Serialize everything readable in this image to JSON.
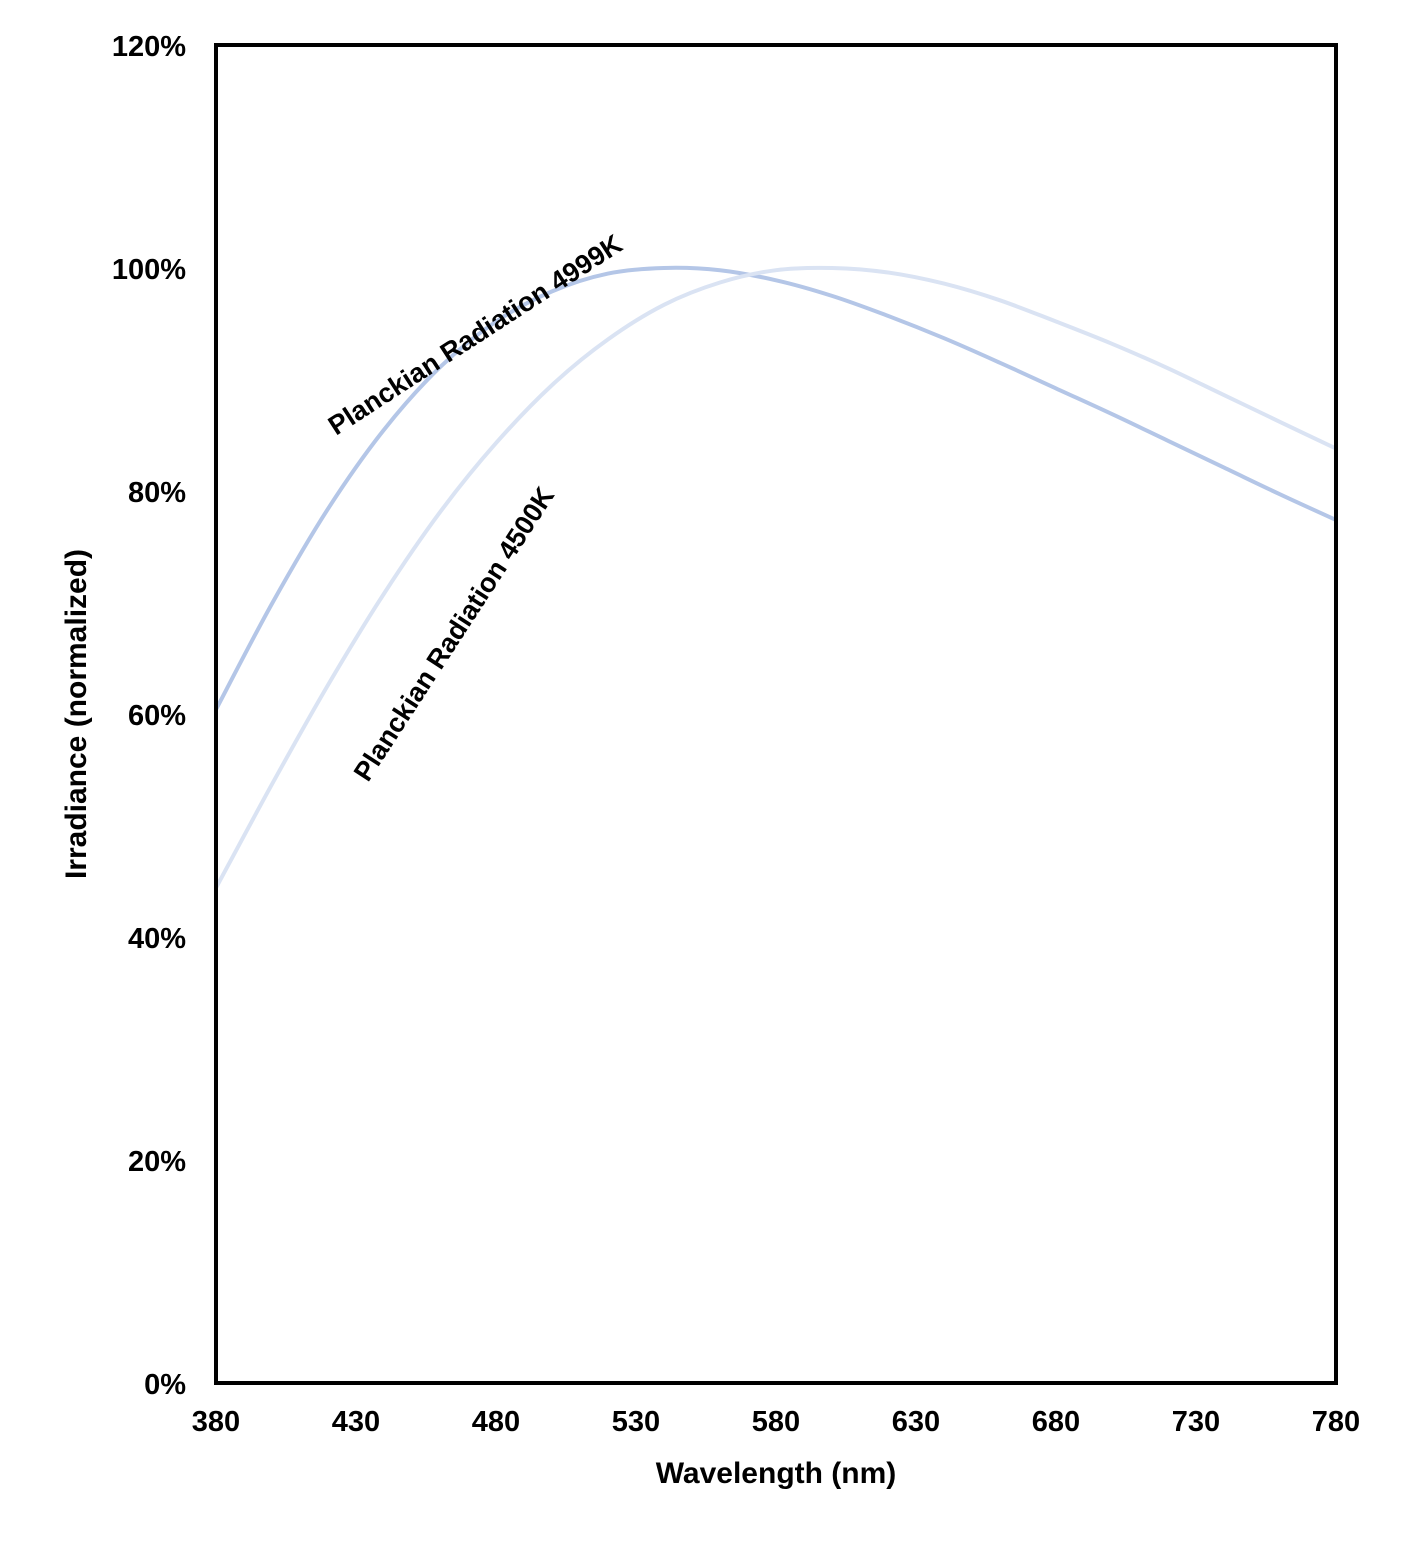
{
  "chart_data": {
    "type": "line",
    "title": "",
    "xlabel": "Wavelength (nm)",
    "ylabel": "Irradiance (normalized)",
    "xlim": [
      380,
      780
    ],
    "ylim": [
      0,
      1.2
    ],
    "x_ticks": [
      380,
      430,
      480,
      530,
      580,
      630,
      680,
      730,
      780
    ],
    "x_tick_labels": [
      "380",
      "430",
      "480",
      "530",
      "580",
      "630",
      "680",
      "730",
      "780"
    ],
    "y_ticks": [
      0,
      0.2,
      0.4,
      0.6,
      0.8,
      1.0,
      1.2
    ],
    "y_tick_labels": [
      "0%",
      "20%",
      "40%",
      "60%",
      "80%",
      "100%",
      "120%"
    ],
    "grid": false,
    "legend": "none",
    "series": [
      {
        "name": "Planckian Radiation 4999K",
        "color": "#b4c6e7",
        "x": [
          380,
          400,
          420,
          440,
          460,
          480,
          500,
          520,
          540,
          560,
          580,
          600,
          620,
          640,
          660,
          680,
          700,
          720,
          740,
          760,
          780
        ],
        "y": [
          0.604,
          0.699,
          0.784,
          0.855,
          0.911,
          0.952,
          0.979,
          0.995,
          1.0,
          0.998,
          0.989,
          0.975,
          0.957,
          0.937,
          0.915,
          0.892,
          0.869,
          0.845,
          0.821,
          0.797,
          0.774
        ]
      },
      {
        "name": "Planckian Radiation 4500K",
        "color": "#dae3f3",
        "x": [
          380,
          400,
          420,
          440,
          460,
          480,
          500,
          520,
          540,
          560,
          580,
          600,
          620,
          640,
          660,
          680,
          700,
          720,
          740,
          760,
          780
        ],
        "y": [
          0.444,
          0.537,
          0.626,
          0.708,
          0.781,
          0.843,
          0.895,
          0.936,
          0.967,
          0.987,
          0.998,
          1.0,
          0.996,
          0.986,
          0.971,
          0.952,
          0.932,
          0.91,
          0.886,
          0.862,
          0.838
        ]
      }
    ],
    "annotations": [
      {
        "text": "Planckian Radiation 4999K",
        "series": 0
      },
      {
        "text": "Planckian Radiation 4500K",
        "series": 1
      }
    ]
  }
}
